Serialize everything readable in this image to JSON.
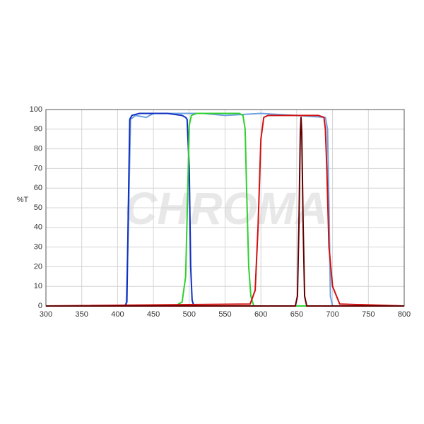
{
  "chart_data": {
    "type": "line",
    "ylabel": "%T",
    "watermark": "CHROMA",
    "xlim": [
      300,
      800
    ],
    "xticks": [
      300,
      350,
      400,
      450,
      500,
      550,
      600,
      650,
      700,
      750,
      800
    ],
    "ylim": [
      0,
      100
    ],
    "yticks": [
      0,
      10,
      20,
      30,
      40,
      50,
      60,
      70,
      80,
      90,
      100
    ],
    "grid": true,
    "series": [
      {
        "color": "#6fa0e0",
        "x": [
          300,
          412,
          415,
          418,
          425,
          440,
          450,
          500,
          520,
          550,
          600,
          650,
          690,
          693,
          695,
          697,
          700,
          800
        ],
        "values": [
          0,
          0,
          40,
          95,
          97,
          96,
          98,
          98,
          98,
          97,
          98,
          97,
          96,
          90,
          50,
          5,
          0,
          0
        ]
      },
      {
        "color": "#1030c0",
        "x": [
          300,
          410,
          413,
          415,
          417,
          420,
          430,
          450,
          470,
          490,
          495,
          497,
          500,
          502,
          504,
          506,
          510,
          800
        ],
        "values": [
          0,
          0,
          2,
          50,
          95,
          97,
          98,
          98,
          98,
          97,
          96,
          95,
          70,
          20,
          3,
          0.5,
          0,
          0
        ]
      },
      {
        "color": "#30d030",
        "x": [
          300,
          480,
          490,
          495,
          498,
          500,
          503,
          510,
          530,
          550,
          570,
          575,
          578,
          580,
          583,
          586,
          590,
          800
        ],
        "values": [
          0,
          0,
          2,
          15,
          60,
          92,
          97,
          98,
          98,
          98,
          98,
          97,
          90,
          60,
          20,
          5,
          0,
          0
        ]
      },
      {
        "color": "#d01010",
        "x": [
          300,
          585,
          592,
          596,
          600,
          604,
          610,
          650,
          680,
          688,
          690,
          692,
          695,
          700,
          710,
          800
        ],
        "values": [
          0,
          1,
          8,
          40,
          85,
          96,
          97,
          97,
          97,
          96,
          90,
          70,
          30,
          10,
          1,
          0
        ]
      },
      {
        "color": "#600000",
        "x": [
          300,
          648,
          651,
          653,
          655,
          656,
          657,
          659,
          661,
          664,
          800
        ],
        "values": [
          0,
          0,
          5,
          40,
          88,
          96,
          88,
          40,
          5,
          0,
          0
        ]
      }
    ]
  }
}
